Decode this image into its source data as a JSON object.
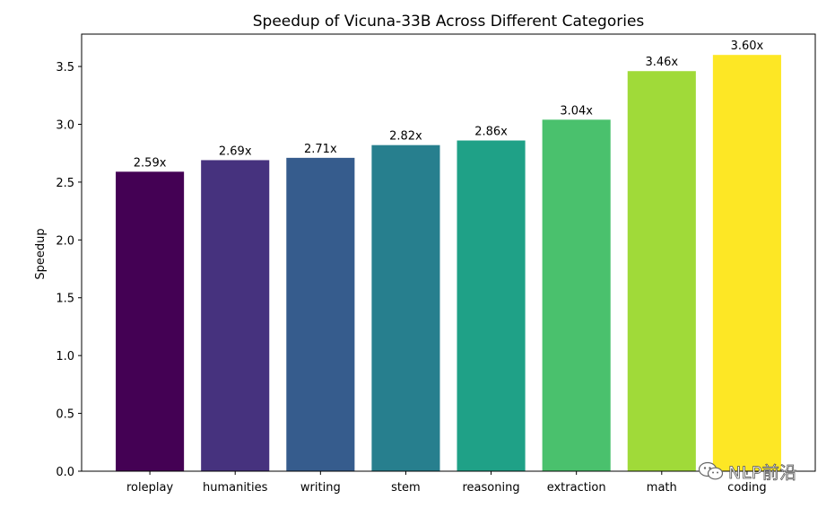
{
  "chart_data": {
    "type": "bar",
    "title": "Speedup of Vicuna-33B Across Different Categories",
    "xlabel": "",
    "ylabel": "Speedup",
    "categories": [
      "roleplay",
      "humanities",
      "writing",
      "stem",
      "reasoning",
      "extraction",
      "math",
      "coding"
    ],
    "values": [
      2.59,
      2.69,
      2.71,
      2.82,
      2.86,
      3.04,
      3.46,
      3.6
    ],
    "data_labels": [
      "2.59x",
      "2.69x",
      "2.71x",
      "2.82x",
      "2.86x",
      "3.04x",
      "3.46x",
      "3.60x"
    ],
    "colors": [
      "#440154",
      "#46327e",
      "#365c8d",
      "#277f8e",
      "#1fa187",
      "#4ac16d",
      "#a0da39",
      "#fde725"
    ],
    "ylim": [
      0,
      3.78
    ],
    "yticks": [
      0.0,
      0.5,
      1.0,
      1.5,
      2.0,
      2.5,
      3.0,
      3.5
    ],
    "ytick_labels": [
      "0.0",
      "0.5",
      "1.0",
      "1.5",
      "2.0",
      "2.5",
      "3.0",
      "3.5"
    ],
    "grid": false,
    "legend": "none"
  },
  "watermark": {
    "text": "NLP前沿",
    "icon": "wechat-icon"
  }
}
